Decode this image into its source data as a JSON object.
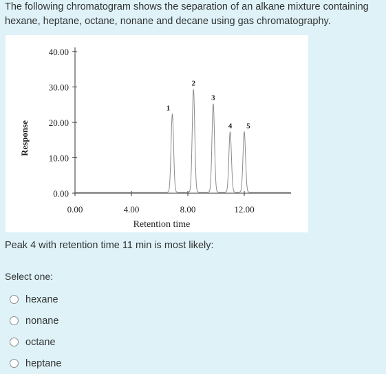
{
  "question": {
    "line1": "The following chromatogram shows the separation of an alkane mixture containing",
    "line2": "hexane, heptane, octane, nonane and decane using gas chromatography.",
    "prompt": "Peak 4 with retention time 11 min is most likely:"
  },
  "answer": {
    "select_label": "Select one:",
    "options": [
      {
        "label": "hexane"
      },
      {
        "label": "nonane"
      },
      {
        "label": "octane"
      },
      {
        "label": "heptane"
      }
    ]
  },
  "chart_data": {
    "type": "line",
    "title": "",
    "xlabel": "Retention time",
    "ylabel": "Response",
    "xlim": [
      0,
      15
    ],
    "ylim": [
      0,
      40
    ],
    "x_ticks": [
      "0.00",
      "4.00",
      "8.00",
      "12.00"
    ],
    "y_ticks": [
      "0.00",
      "10.00",
      "20.00",
      "30.00",
      "40.00"
    ],
    "peaks": [
      {
        "label": "1",
        "x": 6.9,
        "y": 22
      },
      {
        "label": "2",
        "x": 8.4,
        "y": 29
      },
      {
        "label": "3",
        "x": 9.8,
        "y": 25
      },
      {
        "label": "4",
        "x": 11.0,
        "y": 17
      },
      {
        "label": "5",
        "x": 12.0,
        "y": 17
      }
    ]
  }
}
